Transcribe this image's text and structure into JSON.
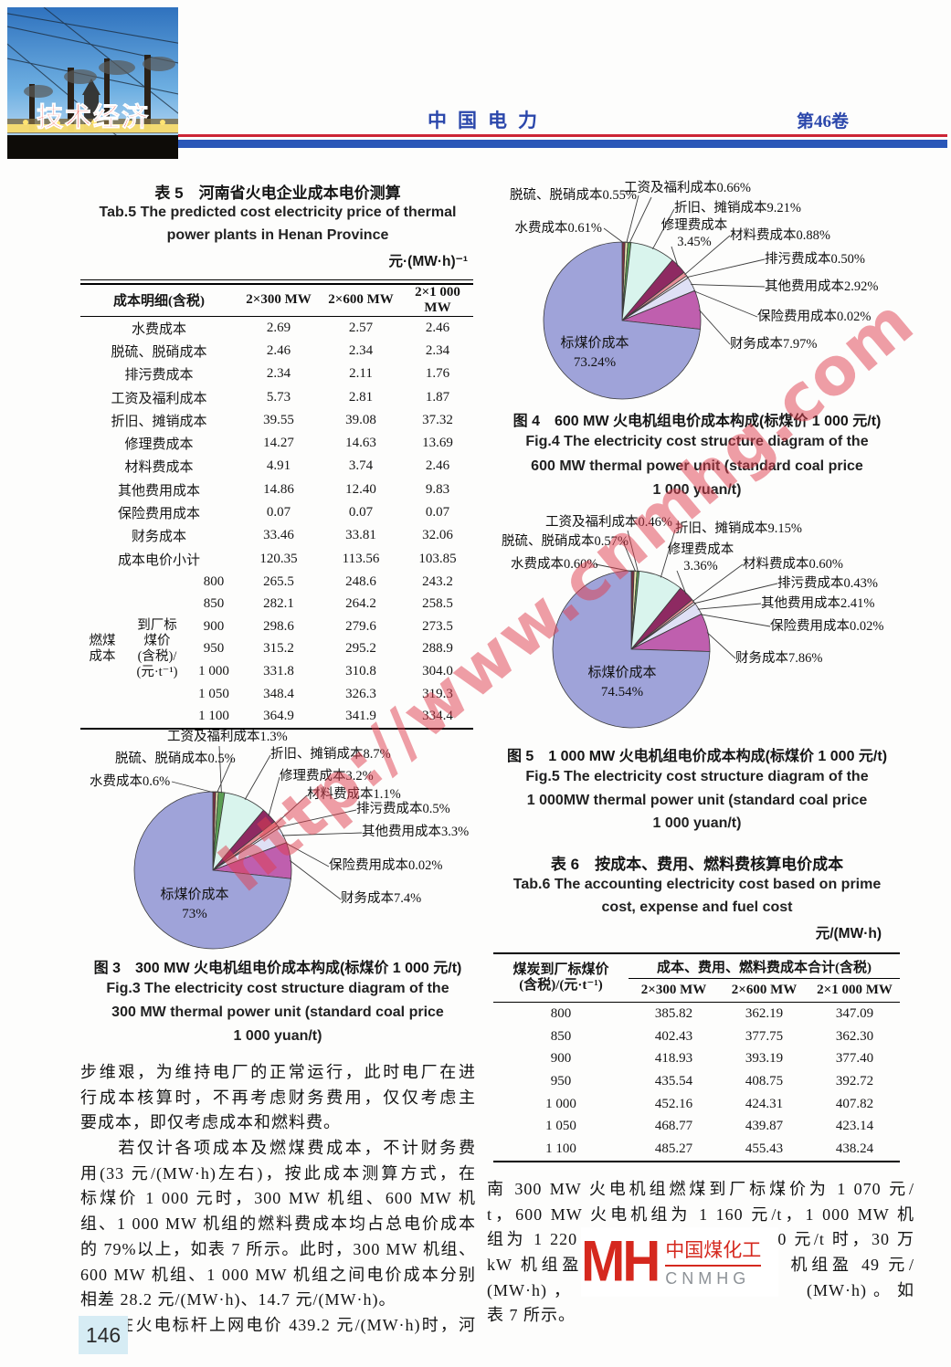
{
  "header": {
    "corner_label": "技术经济",
    "journal": "中国电力",
    "volume": "第46卷"
  },
  "page_number": "146",
  "watermark": "http://www.cnmhg.com",
  "logo": {
    "glyph": "MH",
    "name_zh": "中国煤化工",
    "name_en": "CNMHG"
  },
  "pie_colors": [
    "#7a3044",
    "#f1ecb4",
    "#5b9e54",
    "#d9f4ed",
    "#8e2a62",
    "#e79098",
    "#fbeef1",
    "#dfe0f5",
    "#ffffff",
    "#bf5fae",
    "#9fa3d9"
  ],
  "table5": {
    "title_zh": "表 5　河南省火电企业成本电价测算",
    "title_en1": "Tab.5   The predicted cost electricity price of thermal",
    "title_en2": "power plants in Henan Province",
    "unit": "元·(MW·h)⁻¹",
    "col_headers": [
      "成本明细(含税)",
      "2×300 MW",
      "2×600 MW",
      "2×1 000 MW"
    ],
    "rows": [
      [
        "水费成本",
        "2.69",
        "2.57",
        "2.46"
      ],
      [
        "脱硫、脱硝成本",
        "2.46",
        "2.34",
        "2.34"
      ],
      [
        "排污费成本",
        "2.34",
        "2.11",
        "1.76"
      ],
      [
        "工资及福利成本",
        "5.73",
        "2.81",
        "1.87"
      ],
      [
        "折旧、摊销成本",
        "39.55",
        "39.08",
        "37.32"
      ],
      [
        "修理费成本",
        "14.27",
        "14.63",
        "13.69"
      ],
      [
        "材料费成本",
        "4.91",
        "3.74",
        "2.46"
      ],
      [
        "其他费用成本",
        "14.86",
        "12.40",
        "9.83"
      ],
      [
        "保险费用成本",
        "0.07",
        "0.07",
        "0.07"
      ],
      [
        "财务成本",
        "33.46",
        "33.81",
        "32.06"
      ],
      [
        "成本电价小计",
        "120.35",
        "113.56",
        "103.85"
      ]
    ],
    "fuel_label_a": "燃煤\n成本",
    "fuel_label_b": "到厂标\n煤价\n(含税)/\n(元·t⁻¹)",
    "fuel_rows": [
      [
        "800",
        "265.5",
        "248.6",
        "243.2"
      ],
      [
        "850",
        "282.1",
        "264.2",
        "258.5"
      ],
      [
        "900",
        "298.6",
        "279.6",
        "273.5"
      ],
      [
        "950",
        "315.2",
        "295.2",
        "288.9"
      ],
      [
        "1 000",
        "331.8",
        "310.8",
        "304.0"
      ],
      [
        "1 050",
        "348.4",
        "326.3",
        "319.3"
      ],
      [
        "1 100",
        "364.9",
        "341.9",
        "334.4"
      ]
    ]
  },
  "table6": {
    "title_zh": "表 6　按成本、费用、燃料费核算电价成本",
    "title_en1": "Tab.6   The accounting electricity cost based on prime",
    "title_en2": "cost, expense and fuel cost",
    "unit": "元/(MW·h)",
    "col1_header": "煤炭到厂标煤价\n(含税)/(元·t⁻¹)",
    "group_header": "成本、费用、燃料费成本合计(含税)",
    "sub_headers": [
      "2×300 MW",
      "2×600 MW",
      "2×1 000 MW"
    ],
    "rows": [
      [
        "800",
        "385.82",
        "362.19",
        "347.09"
      ],
      [
        "850",
        "402.43",
        "377.75",
        "362.30"
      ],
      [
        "900",
        "418.93",
        "393.19",
        "377.40"
      ],
      [
        "950",
        "435.54",
        "408.75",
        "392.72"
      ],
      [
        "1 000",
        "452.16",
        "424.31",
        "407.82"
      ],
      [
        "1 050",
        "468.77",
        "439.87",
        "423.14"
      ],
      [
        "1 100",
        "485.27",
        "455.43",
        "438.24"
      ]
    ]
  },
  "chart_data": [
    {
      "type": "pie",
      "title_zh": "图 3　300 MW 火电机组电价成本构成(标煤价 1 000 元/t)",
      "en1": "Fig.3   The electricity cost structure diagram of the",
      "en2": "300 MW thermal power unit (standard coal price",
      "en3": "1 000 yuan/t)",
      "slices": [
        {
          "name": "水费成本",
          "value": 0.6,
          "label": "水费成本0.6%"
        },
        {
          "name": "脱硫、脱硝成本",
          "value": 0.5,
          "label": "脱硫、脱硝成本0.5%"
        },
        {
          "name": "工资及福利成本",
          "value": 1.3,
          "label": "工资及福利成本1.3%"
        },
        {
          "name": "折旧、摊销成本",
          "value": 8.7,
          "label": "折旧、摊销成本8.7%"
        },
        {
          "name": "修理费成本",
          "value": 3.2,
          "label": "修理费成本3.2%"
        },
        {
          "name": "材料费成本",
          "value": 1.1,
          "label": "材料费成本1.1%"
        },
        {
          "name": "排污费成本",
          "value": 0.5,
          "label": "排污费成本0.5%"
        },
        {
          "name": "其他费用成本",
          "value": 3.3,
          "label": "其他费用成本3.3%"
        },
        {
          "name": "保险费用成本",
          "value": 0.02,
          "label": "保险费用成本0.02%"
        },
        {
          "name": "财务成本",
          "value": 7.4,
          "label": "财务成本7.4%"
        }
      ],
      "main": {
        "name": "标煤价成本",
        "value": 73,
        "label": "标煤价成本\n73%"
      }
    },
    {
      "type": "pie",
      "title_zh": "图 4　600 MW 火电机组电价成本构成(标煤价 1 000 元/t)",
      "en1": "Fig.4   The electricity cost structure diagram of the",
      "en2": "600 MW thermal power unit (standard coal price",
      "en3": "1 000 yuan/t)",
      "slices": [
        {
          "name": "水费成本",
          "value": 0.61,
          "label": "水费成本0.61%"
        },
        {
          "name": "脱硫、脱硝成本",
          "value": 0.55,
          "label": "脱硫、脱硝成本0.55%"
        },
        {
          "name": "工资及福利成本",
          "value": 0.66,
          "label": "工资及福利成本0.66%"
        },
        {
          "name": "折旧、摊销成本",
          "value": 9.21,
          "label": "折旧、摊销成本9.21%"
        },
        {
          "name": "修理费成本",
          "value": 3.45,
          "label": "修理费成本3.45%"
        },
        {
          "name": "材料费成本",
          "value": 0.88,
          "label": "材料费成本0.88%"
        },
        {
          "name": "排污费成本",
          "value": 0.5,
          "label": "排污费成本0.50%"
        },
        {
          "name": "其他费用成本",
          "value": 2.92,
          "label": "其他费用成本2.92%"
        },
        {
          "name": "保险费用成本",
          "value": 0.02,
          "label": "保险费用成本0.02%"
        },
        {
          "name": "财务成本",
          "value": 7.97,
          "label": "财务成本7.97%"
        }
      ],
      "main": {
        "name": "标煤价成本",
        "value": 73.24,
        "label": "标煤价成本\n73.24%"
      }
    },
    {
      "type": "pie",
      "title_zh": "图 5　1 000 MW 火电机组电价成本构成(标煤价 1 000 元/t)",
      "en1": "Fig.5   The electricity cost structure diagram of the",
      "en2": "1 000MW thermal power unit (standard coal price",
      "en3": "1 000 yuan/t)",
      "slices": [
        {
          "name": "水费成本",
          "value": 0.6,
          "label": "水费成本0.60%"
        },
        {
          "name": "脱硫、脱硝成本",
          "value": 0.57,
          "label": "脱硫、脱硝成本0.57%"
        },
        {
          "name": "工资及福利成本",
          "value": 0.46,
          "label": "工资及福利成本0.46%"
        },
        {
          "name": "折旧、摊销成本",
          "value": 9.15,
          "label": "折旧、摊销成本9.15%"
        },
        {
          "name": "修理费成本",
          "value": 3.36,
          "label": "修理费成本3.36%"
        },
        {
          "name": "材料费成本",
          "value": 0.6,
          "label": "材料费成本0.60%"
        },
        {
          "name": "排污费成本",
          "value": 0.43,
          "label": "排污费成本0.43%"
        },
        {
          "name": "其他费用成本",
          "value": 2.41,
          "label": "其他费用成本2.41%"
        },
        {
          "name": "保险费用成本",
          "value": 0.02,
          "label": "保险费用成本0.02%"
        },
        {
          "name": "财务成本",
          "value": 7.86,
          "label": "财务成本7.86%"
        }
      ],
      "main": {
        "name": "标煤价成本",
        "value": 74.54,
        "label": "标煤价成本\n74.54%"
      }
    }
  ],
  "paragraphs": {
    "left": [
      "步维艰，为维持电厂的正常运行，此时电厂在进",
      "行成本核算时，不再考虑财务费用，仅仅考虑主",
      "要成本，即仅考虑成本和燃料费。",
      "　　若仅计各项成本及燃煤费成本，不计财务费",
      "用(33 元/(MW·h)左右)，按此成本测算方式，在",
      "标煤价 1 000 元时，300 MW 机组、600 MW 机",
      "组、1 000 MW 机组的燃料费成本均占总电价成本",
      "的 79%以上，如表 7 所示。此时，300 MW 机组、",
      "600 MW 机组、1 000 MW 机组之间电价成本分别",
      "相差 28.2 元/(MW·h)、14.7 元/(MW·h)。",
      "　　在火电标杆上网电价 439.2 元/(MW·h)时，河"
    ],
    "left_end_lines": [
      2,
      9
    ],
    "right": [
      "南 300 MW 火电机组燃煤到厂标煤价为 1 070 元/",
      "t，600 MW 火电机组为 1 160 元/t，1 000 MW 机",
      "组为 1 220 元/t，即在标煤价 1 000 元/t 时，30 万",
      "kW 机组盈　　　　　　　　　　机组盈 49 元/",
      "(MW·h)，　　　　　　　　　　(MW·h)。如",
      "表 7 所示。"
    ],
    "right_end_lines": [
      5
    ]
  }
}
